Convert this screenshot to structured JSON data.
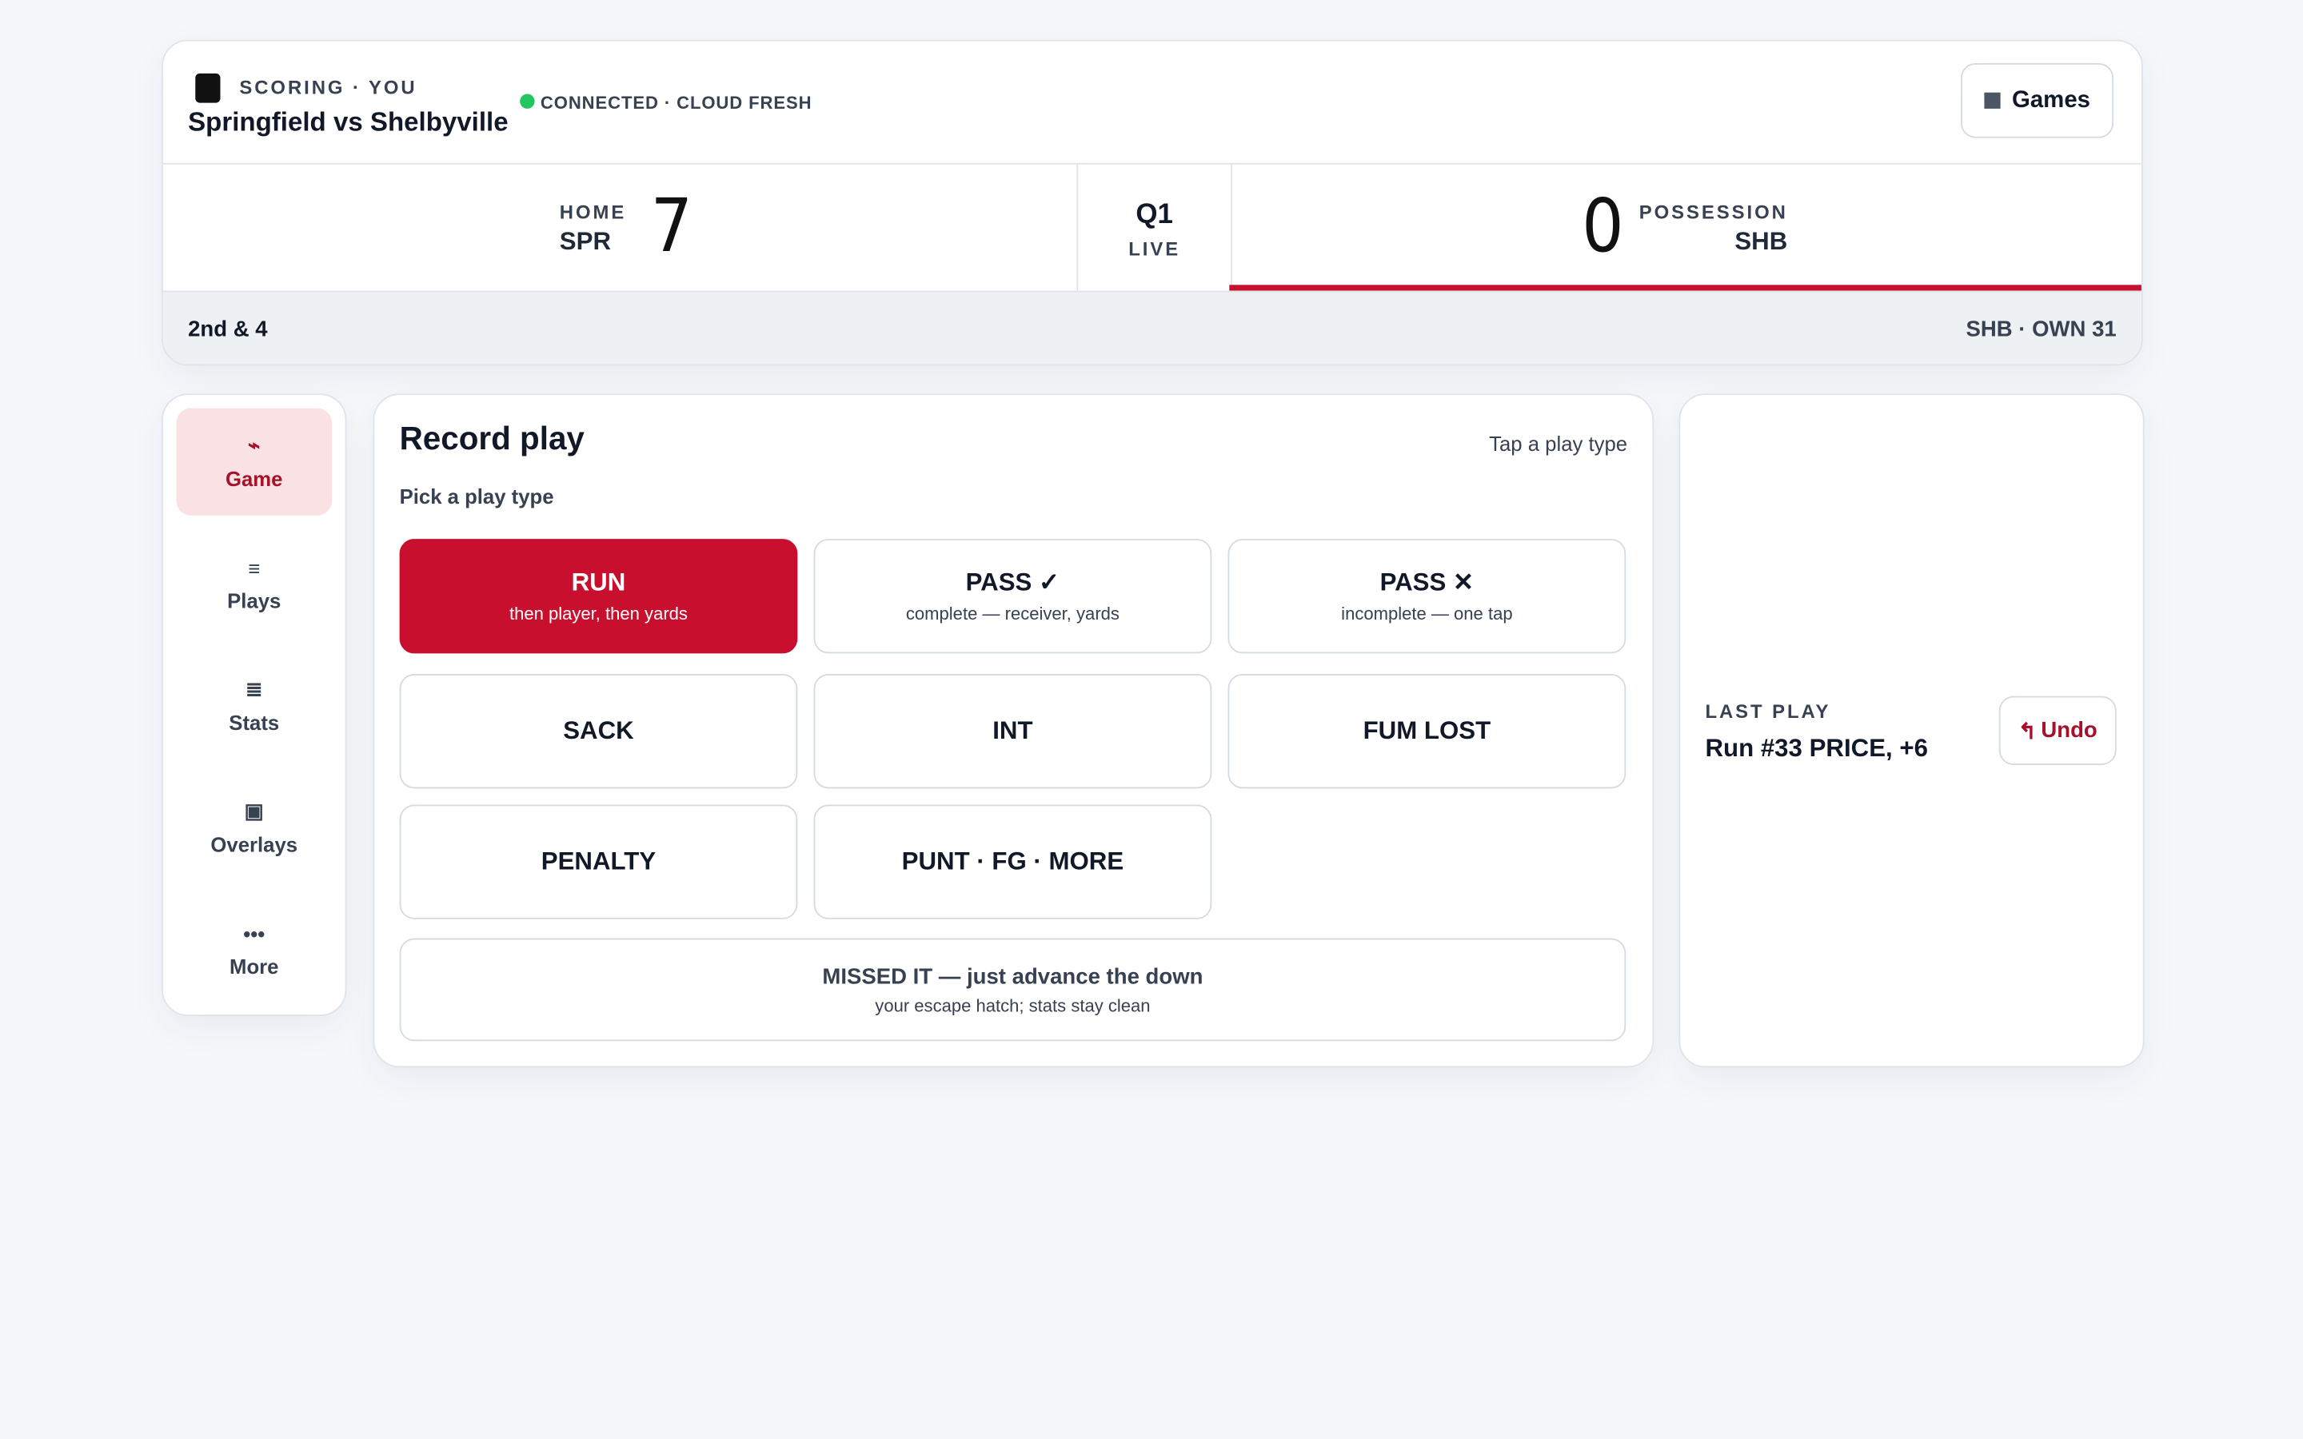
{
  "header": {
    "label": "SCORING · YOU",
    "title": "Springfield vs Shelbyville",
    "status": "CONNECTED · CLOUD FRESH",
    "button": "Games"
  },
  "scoreboard": {
    "home": {
      "label": "HOME",
      "team": "SPR",
      "score": 7
    },
    "quarter": "Q1",
    "status": "LIVE",
    "away": {
      "score": 0,
      "label": "POSSESSION",
      "team": "SHB"
    }
  },
  "situation": {
    "down": "2nd & 4",
    "field": "SHB · OWN 31"
  },
  "nav": [
    "Game",
    "Plays",
    "Stats",
    "Overlays",
    "More"
  ],
  "record_play": {
    "title": "Record play",
    "hint": "Tap a play type",
    "subtitle": "Pick a play type",
    "buttons": [
      {
        "label": "RUN",
        "sub": "then player, then yards"
      },
      {
        "label": "PASS ✓",
        "sub": "complete — receiver, yards"
      },
      {
        "label": "PASS ✕",
        "sub": "incomplete — one tap"
      },
      {
        "label": "SACK"
      },
      {
        "label": "INT"
      },
      {
        "label": "FUM LOST"
      },
      {
        "label": "PENALTY"
      },
      {
        "label": "PUNT · FG · MORE"
      }
    ],
    "missed": {
      "label": "MISSED IT — just advance the down",
      "sub": "your escape hatch; stats stay clean"
    }
  },
  "last_play": {
    "label": "LAST PLAY",
    "text": "Run #33 PRICE, +6",
    "undo": "Undo"
  }
}
